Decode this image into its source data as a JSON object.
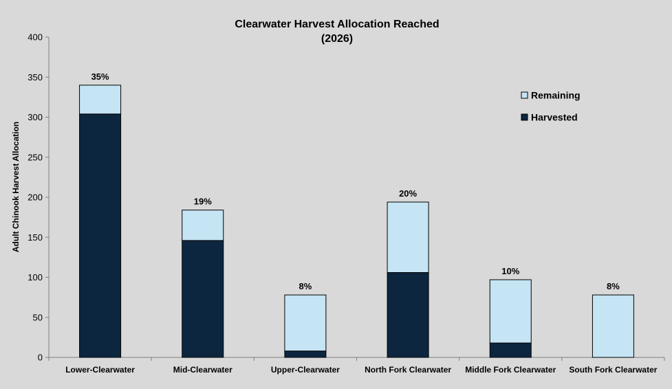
{
  "chart_data": {
    "type": "bar",
    "stacked": true,
    "title": [
      "Clearwater Harvest Allocation Reached",
      "(2026)"
    ],
    "xlabel": "",
    "ylabel": "Adult Chinook Harvest Allocation",
    "ylim": [
      0,
      400
    ],
    "yticks": [
      0,
      50,
      100,
      150,
      200,
      250,
      300,
      350,
      400
    ],
    "grid": false,
    "legend_position": "top-right",
    "categories": [
      "Lower-Clearwater",
      "Mid-Clearwater",
      "Upper-Clearwater",
      "North Fork Clearwater",
      "Middle Fork Clearwater",
      "South Fork Clearwater"
    ],
    "series": [
      {
        "name": "Harvested",
        "color": "#0d2640",
        "values": [
          304,
          146,
          8,
          106,
          18,
          0
        ]
      },
      {
        "name": "Remaining",
        "color": "#c5e4f4",
        "values": [
          36,
          38,
          70,
          88,
          79,
          78
        ]
      }
    ],
    "data_labels": [
      "35%",
      "19%",
      "8%",
      "20%",
      "10%",
      "8%"
    ],
    "legend_order": [
      "Remaining",
      "Harvested"
    ]
  }
}
